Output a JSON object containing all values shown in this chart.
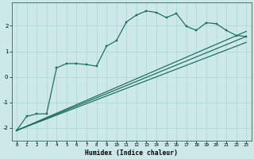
{
  "xlabel": "Humidex (Indice chaleur)",
  "bg_color": "#cce8e8",
  "grid_color": "#aad4d4",
  "line_color": "#1a6b5a",
  "xlim": [
    -0.5,
    23.5
  ],
  "ylim": [
    -2.5,
    2.9
  ],
  "xticks": [
    0,
    1,
    2,
    3,
    4,
    5,
    6,
    7,
    8,
    9,
    10,
    11,
    12,
    13,
    14,
    15,
    16,
    17,
    18,
    19,
    20,
    21,
    22,
    23
  ],
  "yticks": [
    -2,
    -1,
    0,
    1,
    2
  ],
  "curve_x": [
    0,
    1,
    2,
    3,
    4,
    5,
    6,
    7,
    8,
    9,
    10,
    11,
    12,
    13,
    14,
    15,
    16,
    17,
    18,
    19,
    20,
    21,
    22,
    23
  ],
  "curve_y": [
    -2.1,
    -1.55,
    -1.45,
    -1.45,
    0.35,
    0.52,
    0.52,
    0.48,
    0.42,
    1.2,
    1.42,
    2.15,
    2.42,
    2.58,
    2.52,
    2.32,
    2.48,
    1.98,
    1.82,
    2.12,
    2.08,
    1.82,
    1.62,
    1.58
  ],
  "line1_x": [
    0,
    23
  ],
  "line1_y": [
    -2.1,
    1.58
  ],
  "line2_x": [
    0,
    23
  ],
  "line2_y": [
    -2.1,
    1.78
  ],
  "line3_x": [
    0,
    23
  ],
  "line3_y": [
    -2.1,
    1.35
  ]
}
